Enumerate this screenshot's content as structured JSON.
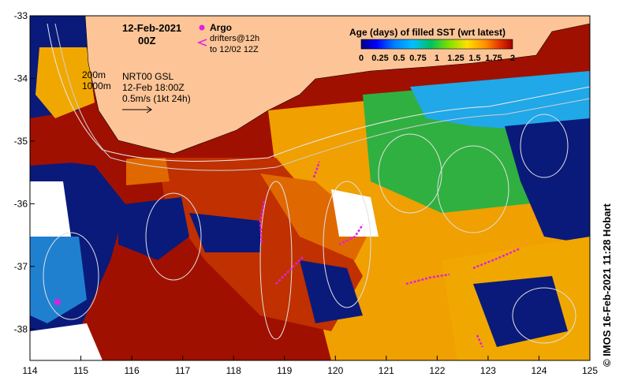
{
  "map": {
    "date": "12-Feb-2021",
    "time": "00Z",
    "lon_ticks": [
      "114",
      "115",
      "116",
      "117",
      "118",
      "119",
      "120",
      "121",
      "122",
      "123",
      "124",
      "125"
    ],
    "lat_ticks": [
      "-33",
      "-34",
      "-35",
      "-36",
      "-37",
      "-38"
    ],
    "lon_range": [
      114,
      125
    ],
    "lat_range": [
      -38.5,
      -33
    ],
    "isobaths": [
      "200m",
      "1000m"
    ],
    "current_source": "NRT00 GSL",
    "current_time": "12-Feb 18:00Z",
    "current_scale": "0.5m/s (1kt 24h)",
    "argo_label": "Argo",
    "drifter_label": "drifters@12h",
    "drifter_label2": "to 12/02 12Z",
    "credit": "© IMOS 16-Feb-2021 11:28 Hobart"
  },
  "legend": {
    "title": "Age (days) of filled SST (wrt latest)",
    "ticks": [
      "0",
      "0.25",
      "0.5",
      "0.75",
      "1",
      "1.25",
      "1.5",
      "1.75",
      "2"
    ],
    "range": [
      0,
      2
    ],
    "colors": [
      "#000080",
      "#0000ff",
      "#0080ff",
      "#00c0ff",
      "#00c060",
      "#80e000",
      "#ffe000",
      "#ff9000",
      "#e03000",
      "#a00000"
    ]
  },
  "colors": {
    "land": "#fdc597",
    "deep_blue": "#0a1a7a",
    "dark_red": "#a01000",
    "orange": "#f07800",
    "yellow_orange": "#f0a800",
    "green": "#30b030",
    "cyan": "#20a0e0",
    "magenta": "#e020e0"
  }
}
